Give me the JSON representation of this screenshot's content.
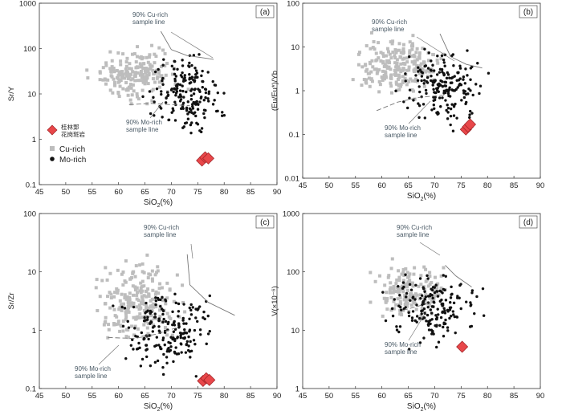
{
  "figure": {
    "description_free": true
  },
  "colors": {
    "cu": "#bdbdbd",
    "mo": "#111111",
    "diamond": "#e8474a",
    "diamond_edge": "#9c1f22",
    "line": "#777777",
    "note": "#4a5a66"
  },
  "chart_data": [
    {
      "id": "a",
      "type": "scatter",
      "panel_label": "(a)",
      "ylabel": "Sr/Y",
      "xlabel": "SiO2(%)",
      "xlabel_main": "SiO",
      "xlabel_sub": "2",
      "xlabel_tail": "(%)",
      "ylog": true,
      "ylim": [
        0.1,
        1000
      ],
      "xlim": [
        45,
        90
      ],
      "yticks": [
        0.1,
        1,
        10,
        100,
        1000
      ],
      "ytick_labels": [
        "0.1",
        "1",
        "10",
        "100",
        "1000"
      ],
      "xticks": [
        45,
        50,
        55,
        60,
        65,
        70,
        75,
        80,
        85,
        90
      ],
      "xtick_labels": [
        "45",
        "50",
        "55",
        "60",
        "65",
        "70",
        "75",
        "80",
        "85",
        "90"
      ],
      "cu_line_label": [
        "90%  Cu-rich",
        "sample line"
      ],
      "mo_line_label": [
        "90%  Mo-rich",
        "sample line"
      ],
      "cu_cloud": {
        "x": [
          53,
          73.5
        ],
        "y": [
          5,
          160
        ],
        "n": 210
      },
      "mo_cloud": {
        "x": [
          63.5,
          82
        ],
        "y": [
          0.7,
          190
        ],
        "n": 190
      },
      "diamonds": [
        [
          75.8,
          0.34
        ],
        [
          76.4,
          0.4
        ],
        [
          77.0,
          0.38
        ]
      ],
      "cu_line": [
        [
          68,
          240
        ],
        [
          70,
          95
        ],
        [
          73,
          70
        ],
        [
          78,
          58
        ]
      ],
      "mo_line": [
        [
          62,
          5.8
        ],
        [
          66,
          6.2
        ],
        [
          70,
          5.8
        ],
        [
          73.5,
          5.5
        ]
      ],
      "legend": {
        "diamond_label": [
          "桂林郢",
          "花岗斑岩"
        ],
        "cu_label": "Cu-rich",
        "mo_label": "Mo-rich"
      }
    },
    {
      "id": "b",
      "type": "scatter",
      "panel_label": "(b)",
      "ylabel": "(Eu/Eu*)/Yb",
      "xlabel": "SiO2(%)",
      "xlabel_main": "SiO",
      "xlabel_sub": "2",
      "xlabel_tail": "(%)",
      "ylog": true,
      "ylim": [
        0.01,
        100
      ],
      "xlim": [
        45,
        90
      ],
      "yticks": [
        0.01,
        0.1,
        1,
        10,
        100
      ],
      "ytick_labels": [
        "0.01",
        "0.1",
        "1",
        "10",
        "100"
      ],
      "xticks": [
        45,
        50,
        55,
        60,
        65,
        70,
        75,
        80,
        85,
        90
      ],
      "xtick_labels": [
        "45",
        "50",
        "55",
        "60",
        "65",
        "70",
        "75",
        "80",
        "85",
        "90"
      ],
      "cu_line_label": [
        "90%  Cu-rich",
        "sample line"
      ],
      "mo_line_label": [
        "90%  Mo-rich",
        "sample line"
      ],
      "cu_cloud": {
        "x": [
          52,
          73.5
        ],
        "y": [
          0.5,
          25
        ],
        "n": 220
      },
      "mo_cloud": {
        "x": [
          62,
          82
        ],
        "y": [
          0.1,
          14
        ],
        "n": 190
      },
      "diamonds": [
        [
          75.9,
          0.13
        ],
        [
          76.3,
          0.15
        ],
        [
          76.7,
          0.17
        ]
      ],
      "cu_line": [
        [
          71,
          20
        ],
        [
          73,
          6
        ],
        [
          76,
          4
        ],
        [
          79,
          3.3
        ]
      ],
      "mo_line": [
        [
          59,
          0.35
        ],
        [
          63,
          0.55
        ],
        [
          67,
          0.7
        ],
        [
          72,
          0.8
        ]
      ],
      "legend": null
    },
    {
      "id": "c",
      "type": "scatter",
      "panel_label": "(c)",
      "ylabel": "Sr/Zr",
      "xlabel": "SiO2(%)",
      "xlabel_main": "SiO",
      "xlabel_sub": "2",
      "xlabel_tail": "(%)",
      "ylog": true,
      "ylim": [
        0.1,
        100
      ],
      "xlim": [
        45,
        90
      ],
      "yticks": [
        0.1,
        1,
        10,
        100
      ],
      "ytick_labels": [
        "0.1",
        "1",
        "10",
        "100"
      ],
      "xticks": [
        45,
        50,
        55,
        60,
        65,
        70,
        75,
        80,
        85,
        90
      ],
      "xtick_labels": [
        "45",
        "50",
        "55",
        "60",
        "65",
        "70",
        "75",
        "80",
        "85",
        "90"
      ],
      "cu_line_label": [
        "90%  Cu-rich",
        "sample line"
      ],
      "mo_line_label": [
        "90%  Mo-rich",
        "sample line"
      ],
      "cu_cloud": {
        "x": [
          53,
          74
        ],
        "y": [
          0.35,
          25
        ],
        "n": 230
      },
      "mo_cloud": {
        "x": [
          57,
          81
        ],
        "y": [
          0.13,
          8
        ],
        "n": 200
      },
      "diamonds": [
        [
          76.0,
          0.135
        ],
        [
          76.6,
          0.15
        ],
        [
          77.2,
          0.14
        ]
      ],
      "cu_line": [
        [
          73,
          20
        ],
        [
          73.5,
          6
        ],
        [
          77,
          3
        ],
        [
          82,
          1.8
        ]
      ],
      "mo_line": [
        [
          58,
          0.75
        ],
        [
          63,
          0.72
        ],
        [
          67,
          0.85
        ],
        [
          71,
          1.1
        ]
      ],
      "legend": null
    },
    {
      "id": "d",
      "type": "scatter",
      "panel_label": "(d)",
      "ylabel": "V(×10⁻⁶)",
      "xlabel": "SiO2(%)",
      "xlabel_main": "SiO",
      "xlabel_sub": "2",
      "xlabel_tail": "(%)",
      "ylog": true,
      "ylim": [
        1,
        1000
      ],
      "xlim": [
        45,
        90
      ],
      "yticks": [
        1,
        10,
        100,
        1000
      ],
      "ytick_labels": [
        "1",
        "10",
        "100",
        "1000"
      ],
      "xticks": [
        45,
        50,
        55,
        60,
        65,
        70,
        75,
        80,
        85,
        90
      ],
      "xtick_labels": [
        "45",
        "50",
        "55",
        "60",
        "65",
        "70",
        "75",
        "80",
        "85",
        "90"
      ],
      "cu_line_label": [
        "90%  Cu-rich",
        "sample line"
      ],
      "mo_line_label": [
        "90%  Mo-rich",
        "sample line"
      ],
      "cu_cloud": {
        "x": [
          55,
          74
        ],
        "y": [
          12,
          190
        ],
        "n": 170
      },
      "mo_cloud": {
        "x": [
          58,
          81
        ],
        "y": [
          4,
          140
        ],
        "n": 180
      },
      "diamonds": [
        [
          75.2,
          5.2
        ]
      ],
      "cu_line": [
        [
          72,
          130
        ],
        [
          74,
          85
        ],
        [
          77,
          55
        ]
      ],
      "mo_line": [
        [
          64,
          22
        ],
        [
          67,
          26
        ],
        [
          69,
          30
        ]
      ],
      "legend": null
    }
  ]
}
